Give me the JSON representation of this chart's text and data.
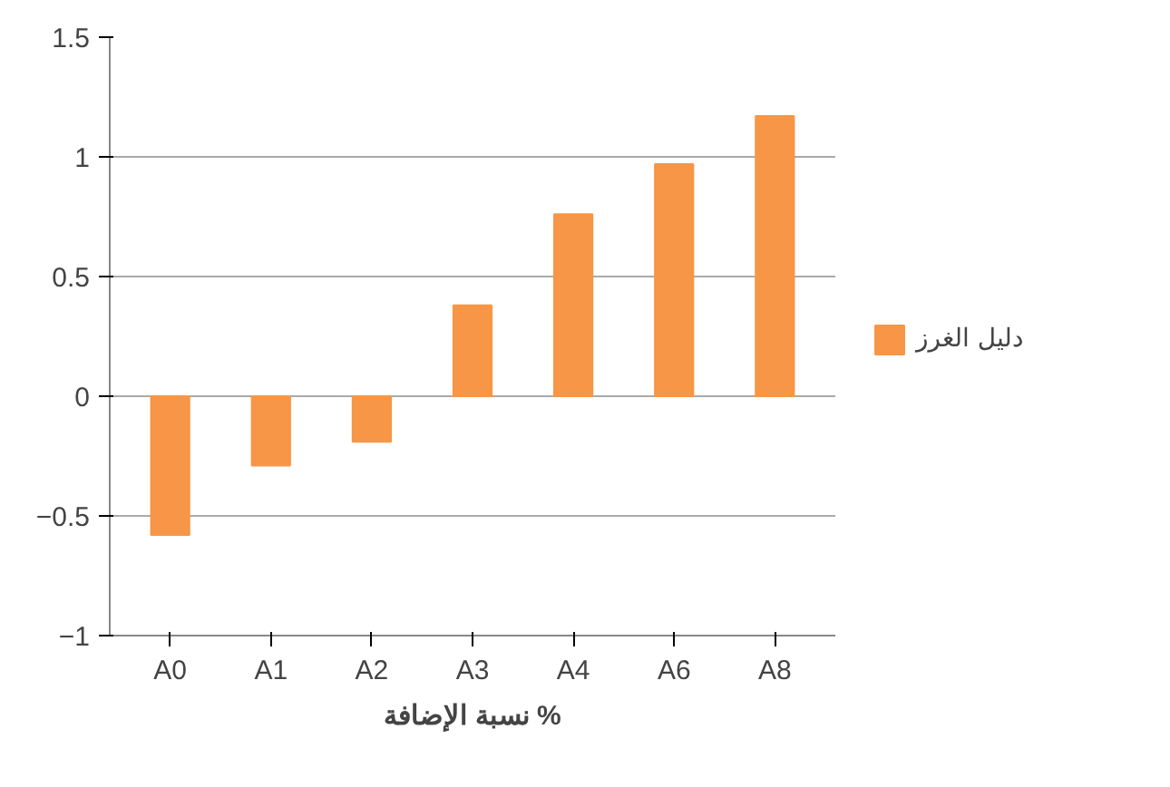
{
  "chart_data": {
    "type": "bar",
    "xlabel": "نسبة الإضافة %",
    "categories": [
      "A0",
      "A1",
      "A2",
      "A3",
      "A4",
      "A6",
      "A8"
    ],
    "series": [
      {
        "name": "دليل الغرز",
        "color": "#f79646",
        "values": [
          -0.58,
          -0.29,
          -0.19,
          0.38,
          0.76,
          0.97,
          1.17
        ]
      }
    ],
    "ylim": [
      -1,
      1.5
    ],
    "yticks": [
      -1,
      -0.5,
      0,
      0.5,
      1,
      1.5
    ],
    "grid": "y",
    "legend": "right"
  }
}
